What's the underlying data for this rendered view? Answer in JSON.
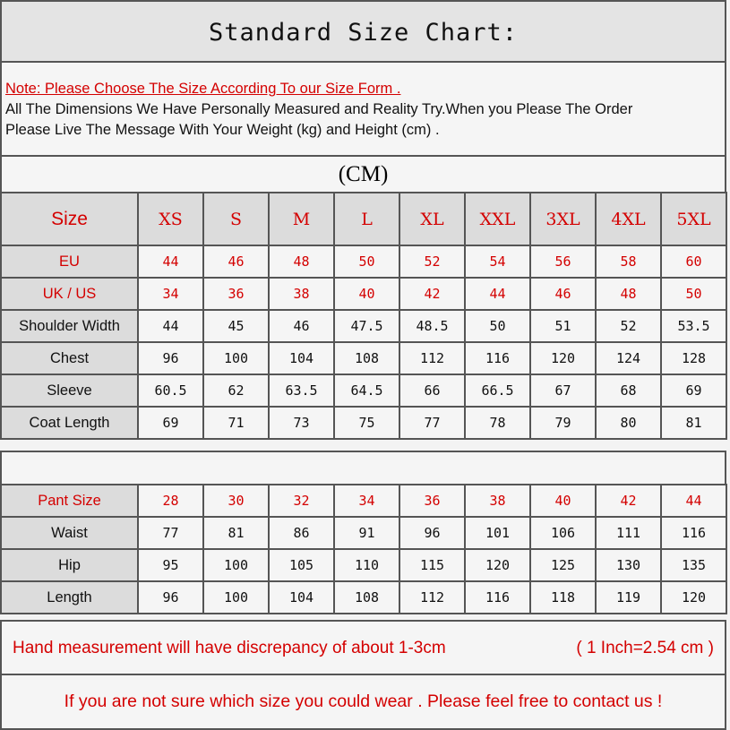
{
  "title": "Standard Size Chart:",
  "note": {
    "red": "Note: Please Choose The Size According To our Size Form .",
    "line1": "All The Dimensions We Have Personally Measured and Reality Try.When you Please The Order",
    "line2": "Please Live The Message With Your Weight (kg) and Height (cm) ."
  },
  "unit": "(CM)",
  "jacket": {
    "header_label": "Size",
    "sizes": [
      "XS",
      "S",
      "M",
      "L",
      "XL",
      "XXL",
      "3XL",
      "4XL",
      "5XL"
    ],
    "rows": [
      {
        "label": "EU",
        "values": [
          "44",
          "46",
          "48",
          "50",
          "52",
          "54",
          "56",
          "58",
          "60"
        ],
        "red": true
      },
      {
        "label": "UK / US",
        "values": [
          "34",
          "36",
          "38",
          "40",
          "42",
          "44",
          "46",
          "48",
          "50"
        ],
        "red": true
      },
      {
        "label": "Shoulder Width",
        "values": [
          "44",
          "45",
          "46",
          "47.5",
          "48.5",
          "50",
          "51",
          "52",
          "53.5"
        ]
      },
      {
        "label": "Chest",
        "values": [
          "96",
          "100",
          "104",
          "108",
          "112",
          "116",
          "120",
          "124",
          "128"
        ]
      },
      {
        "label": "Sleeve",
        "values": [
          "60.5",
          "62",
          "63.5",
          "64.5",
          "66",
          "66.5",
          "67",
          "68",
          "69"
        ]
      },
      {
        "label": "Coat Length",
        "values": [
          "69",
          "71",
          "73",
          "75",
          "77",
          "78",
          "79",
          "80",
          "81"
        ]
      }
    ]
  },
  "pants": {
    "rows": [
      {
        "label": "Pant Size",
        "values": [
          "28",
          "30",
          "32",
          "34",
          "36",
          "38",
          "40",
          "42",
          "44"
        ],
        "red": true
      },
      {
        "label": "Waist",
        "values": [
          "77",
          "81",
          "86",
          "91",
          "96",
          "101",
          "106",
          "111",
          "116"
        ]
      },
      {
        "label": "Hip",
        "values": [
          "95",
          "100",
          "105",
          "110",
          "115",
          "120",
          "125",
          "130",
          "135"
        ]
      },
      {
        "label": "Length",
        "values": [
          "96",
          "100",
          "104",
          "108",
          "112",
          "116",
          "118",
          "119",
          "120"
        ]
      }
    ]
  },
  "footer": {
    "discrepancy": "Hand measurement will have discrepancy of about 1-3cm",
    "conversion": "( 1 Inch=2.54 cm )",
    "contact": "If you are not sure which size you could wear . Please feel free to contact us !"
  },
  "colors": {
    "accent_red": "#d40000",
    "header_gray": "#dcdcdc"
  }
}
